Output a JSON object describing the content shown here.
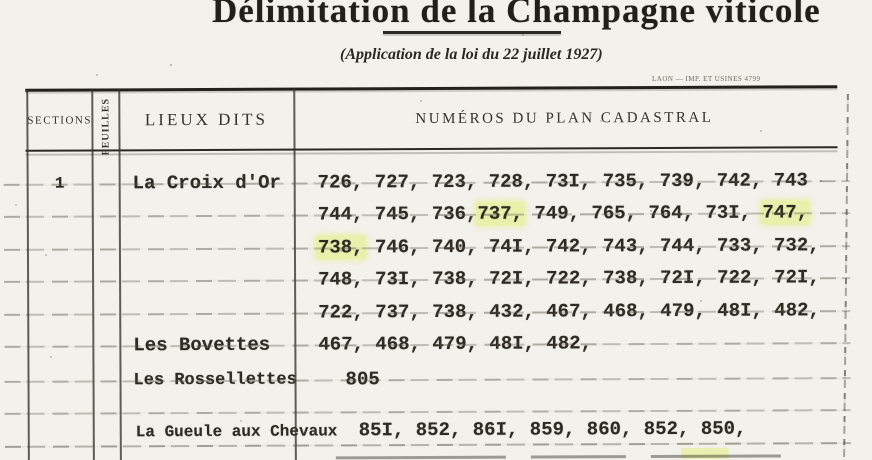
{
  "document": {
    "title": "Délimitation de la Champagne viticole",
    "subtitle": "(Application de la loi du 22 juillet 1927)",
    "printer_mark": "LAON — IMP. ET USINES 4799"
  },
  "table": {
    "columns": {
      "sections": "SECTIONS",
      "feuilles": "FEUILLES",
      "lieux_dits": "LIEUX DITS",
      "numeros": "NUMÉROS DU PLAN CADASTRAL"
    },
    "highlight_color": "#e9f0ab",
    "rows": [
      {
        "section": "1",
        "lieu_dit": "La Croix d'Or",
        "numbers": [
          {
            "t": "726, 727, 723, 728, 73I, 735, 739, 742, 743"
          }
        ]
      },
      {
        "numbers": [
          {
            "t": "744, 745, 736,"
          },
          {
            "t": "737,",
            "hl": true
          },
          {
            "t": " 749, 765, 764, 73I, "
          },
          {
            "t": "747,",
            "hl": true
          }
        ]
      },
      {
        "numbers": [
          {
            "t": "738,",
            "hl": true
          },
          {
            "t": " 746, 740, 74I, 742, 743, 744, 733, 732,"
          }
        ]
      },
      {
        "numbers": [
          {
            "t": "748, 73I, 738, 72I, 722, 738, 72I, 722, 72I,"
          }
        ]
      },
      {
        "numbers": [
          {
            "t": "722, 737, 738, 432, 467, 468, 479, 48I, 482,"
          }
        ]
      },
      {
        "lieu_dit": "Les Bovettes",
        "numbers": [
          {
            "t": "467, 468, 479, 48I, 482,"
          }
        ]
      },
      {
        "lieu_dit": "Les Rossellettes",
        "numbers": [
          {
            "t": "805"
          }
        ]
      },
      {
        "lieu_dit": "La Gueule aux Chevaux",
        "numbers": [
          {
            "t": "85I, 852, 86I, 859, 860, 852, 850,"
          }
        ]
      }
    ]
  }
}
